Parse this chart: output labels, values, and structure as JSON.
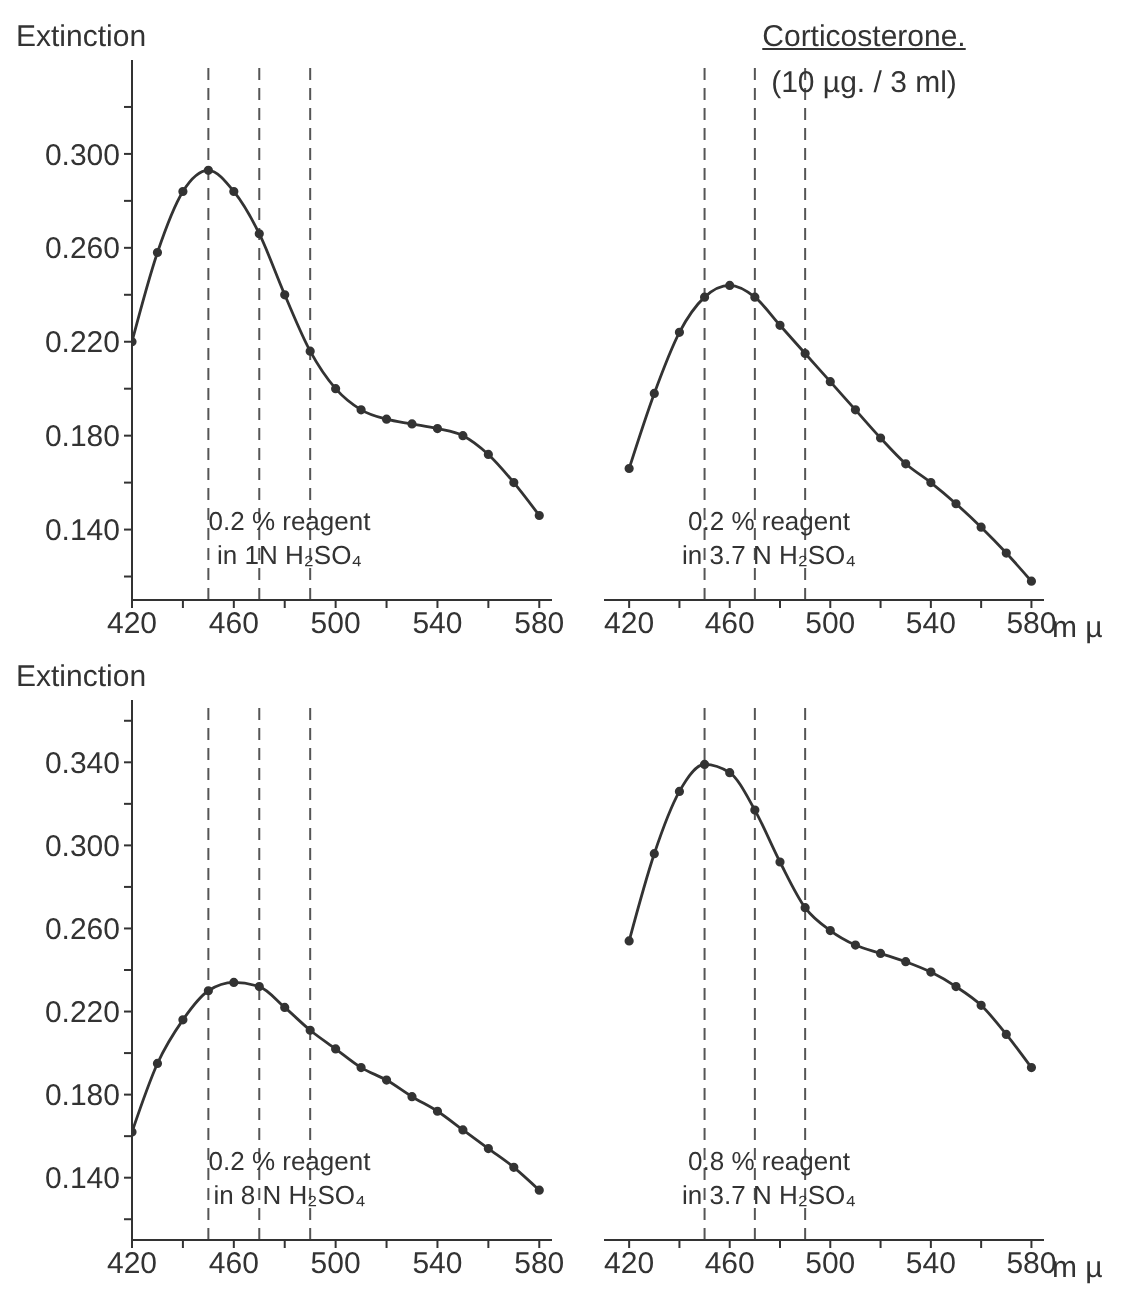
{
  "chart_data": [
    {
      "type": "line",
      "ylabel": "Extinction",
      "x": [
        420,
        430,
        440,
        450,
        460,
        470,
        480,
        490,
        500,
        510,
        520,
        530,
        540,
        550,
        560,
        570,
        580
      ],
      "series": [
        {
          "color": "#333333",
          "values": [
            0.22,
            0.258,
            0.284,
            0.293,
            0.284,
            0.266,
            0.24,
            0.216,
            0.2,
            0.191,
            0.187,
            0.185,
            0.183,
            0.18,
            0.172,
            0.16,
            0.146
          ]
        }
      ],
      "xlim": [
        420,
        585
      ],
      "xticks": [
        420,
        {
          "value": 440,
          "label": null
        },
        460,
        {
          "value": 480,
          "label": null
        },
        500,
        {
          "value": 520,
          "label": null
        },
        540,
        {
          "value": 560,
          "label": null
        },
        580
      ],
      "ylim": [
        0.11,
        0.34
      ],
      "yticks": [
        {
          "value": 0.12,
          "label": null
        },
        {
          "value": 0.14,
          "label": "0.140"
        },
        {
          "value": 0.16,
          "label": null
        },
        {
          "value": 0.18,
          "label": "0.180"
        },
        {
          "value": 0.2,
          "label": null
        },
        {
          "value": 0.22,
          "label": "0.220"
        },
        {
          "value": 0.24,
          "label": null
        },
        {
          "value": 0.26,
          "label": "0.260"
        },
        {
          "value": 0.28,
          "label": null
        },
        {
          "value": 0.3,
          "label": "0.300"
        },
        {
          "value": 0.32,
          "label": null
        }
      ],
      "ref_lines": [
        {
          "axis": "x",
          "value": 450,
          "line_style": "dashed",
          "color": "#555555"
        },
        {
          "axis": "x",
          "value": 470,
          "line_style": "dashed",
          "color": "#555555"
        },
        {
          "axis": "x",
          "value": 490,
          "line_style": "dashed",
          "color": "#555555"
        }
      ],
      "annotations": [
        "0.2 % reagent",
        "in 1N  H₂SO₄"
      ],
      "marker": "circle",
      "line_style": "solid",
      "grid": false,
      "legend": false
    },
    {
      "type": "line",
      "title": "Corticosterone.",
      "subtitle": "(10 µg. / 3 ml)",
      "xlabel": "m µ",
      "x": [
        420,
        430,
        440,
        450,
        460,
        470,
        480,
        490,
        500,
        510,
        520,
        530,
        540,
        550,
        560,
        570,
        580
      ],
      "series": [
        {
          "color": "#333333",
          "values": [
            0.166,
            0.198,
            0.224,
            0.239,
            0.244,
            0.239,
            0.227,
            0.215,
            0.203,
            0.191,
            0.179,
            0.168,
            0.16,
            0.151,
            0.141,
            0.13,
            0.118
          ]
        }
      ],
      "xlim": [
        410,
        585
      ],
      "xticks": [
        420,
        {
          "value": 440,
          "label": null
        },
        460,
        {
          "value": 480,
          "label": null
        },
        500,
        {
          "value": 520,
          "label": null
        },
        540,
        {
          "value": 560,
          "label": null
        },
        580
      ],
      "ylim": [
        0.11,
        0.34
      ],
      "tick_labels": "x",
      "ref_lines": [
        {
          "axis": "x",
          "value": 450,
          "line_style": "dashed",
          "color": "#555555"
        },
        {
          "axis": "x",
          "value": 470,
          "line_style": "dashed",
          "color": "#555555"
        },
        {
          "axis": "x",
          "value": 490,
          "line_style": "dashed",
          "color": "#555555"
        }
      ],
      "annotations": [
        "0.2 % reagent",
        "in 3.7 N  H₂SO₄"
      ],
      "marker": "circle",
      "line_style": "solid",
      "grid": false,
      "legend": false
    },
    {
      "type": "line",
      "ylabel": "Extinction",
      "x": [
        420,
        430,
        440,
        450,
        460,
        470,
        480,
        490,
        500,
        510,
        520,
        530,
        540,
        550,
        560,
        570,
        580
      ],
      "series": [
        {
          "color": "#333333",
          "values": [
            0.162,
            0.195,
            0.216,
            0.23,
            0.234,
            0.232,
            0.222,
            0.211,
            0.202,
            0.193,
            0.187,
            0.179,
            0.172,
            0.163,
            0.154,
            0.145,
            0.134
          ]
        }
      ],
      "xlim": [
        420,
        585
      ],
      "xticks": [
        420,
        {
          "value": 440,
          "label": null
        },
        460,
        {
          "value": 480,
          "label": null
        },
        500,
        {
          "value": 520,
          "label": null
        },
        540,
        {
          "value": 560,
          "label": null
        },
        580
      ],
      "ylim": [
        0.11,
        0.37
      ],
      "yticks": [
        {
          "value": 0.12,
          "label": null
        },
        {
          "value": 0.14,
          "label": "0.140"
        },
        {
          "value": 0.16,
          "label": null
        },
        {
          "value": 0.18,
          "label": "0.180"
        },
        {
          "value": 0.2,
          "label": null
        },
        {
          "value": 0.22,
          "label": "0.220"
        },
        {
          "value": 0.24,
          "label": null
        },
        {
          "value": 0.26,
          "label": "0.260"
        },
        {
          "value": 0.28,
          "label": null
        },
        {
          "value": 0.3,
          "label": "0.300"
        },
        {
          "value": 0.32,
          "label": null
        },
        {
          "value": 0.34,
          "label": "0.340"
        },
        {
          "value": 0.36,
          "label": null
        }
      ],
      "ref_lines": [
        {
          "axis": "x",
          "value": 450,
          "line_style": "dashed",
          "color": "#555555"
        },
        {
          "axis": "x",
          "value": 470,
          "line_style": "dashed",
          "color": "#555555"
        },
        {
          "axis": "x",
          "value": 490,
          "line_style": "dashed",
          "color": "#555555"
        }
      ],
      "annotations": [
        "0.2 % reagent",
        "in 8 N  H₂SO₄"
      ],
      "marker": "circle",
      "line_style": "solid",
      "grid": false,
      "legend": false
    },
    {
      "type": "line",
      "xlabel": "m µ",
      "x": [
        420,
        430,
        440,
        450,
        460,
        470,
        480,
        490,
        500,
        510,
        520,
        530,
        540,
        550,
        560,
        570,
        580
      ],
      "series": [
        {
          "color": "#333333",
          "values": [
            0.254,
            0.296,
            0.326,
            0.339,
            0.335,
            0.317,
            0.292,
            0.27,
            0.259,
            0.252,
            0.248,
            0.244,
            0.239,
            0.232,
            0.223,
            0.209,
            0.193
          ]
        }
      ],
      "xlim": [
        410,
        585
      ],
      "xticks": [
        420,
        {
          "value": 440,
          "label": null
        },
        460,
        {
          "value": 480,
          "label": null
        },
        500,
        {
          "value": 520,
          "label": null
        },
        540,
        {
          "value": 560,
          "label": null
        },
        580
      ],
      "ylim": [
        0.11,
        0.37
      ],
      "tick_labels": "x",
      "ref_lines": [
        {
          "axis": "x",
          "value": 450,
          "line_style": "dashed",
          "color": "#555555"
        },
        {
          "axis": "x",
          "value": 470,
          "line_style": "dashed",
          "color": "#555555"
        },
        {
          "axis": "x",
          "value": 490,
          "line_style": "dashed",
          "color": "#555555"
        }
      ],
      "annotations": [
        "0.8 % reagent",
        "in 3.7 N  H₂SO₄"
      ],
      "marker": "circle",
      "line_style": "solid",
      "grid": false,
      "legend": false
    }
  ]
}
